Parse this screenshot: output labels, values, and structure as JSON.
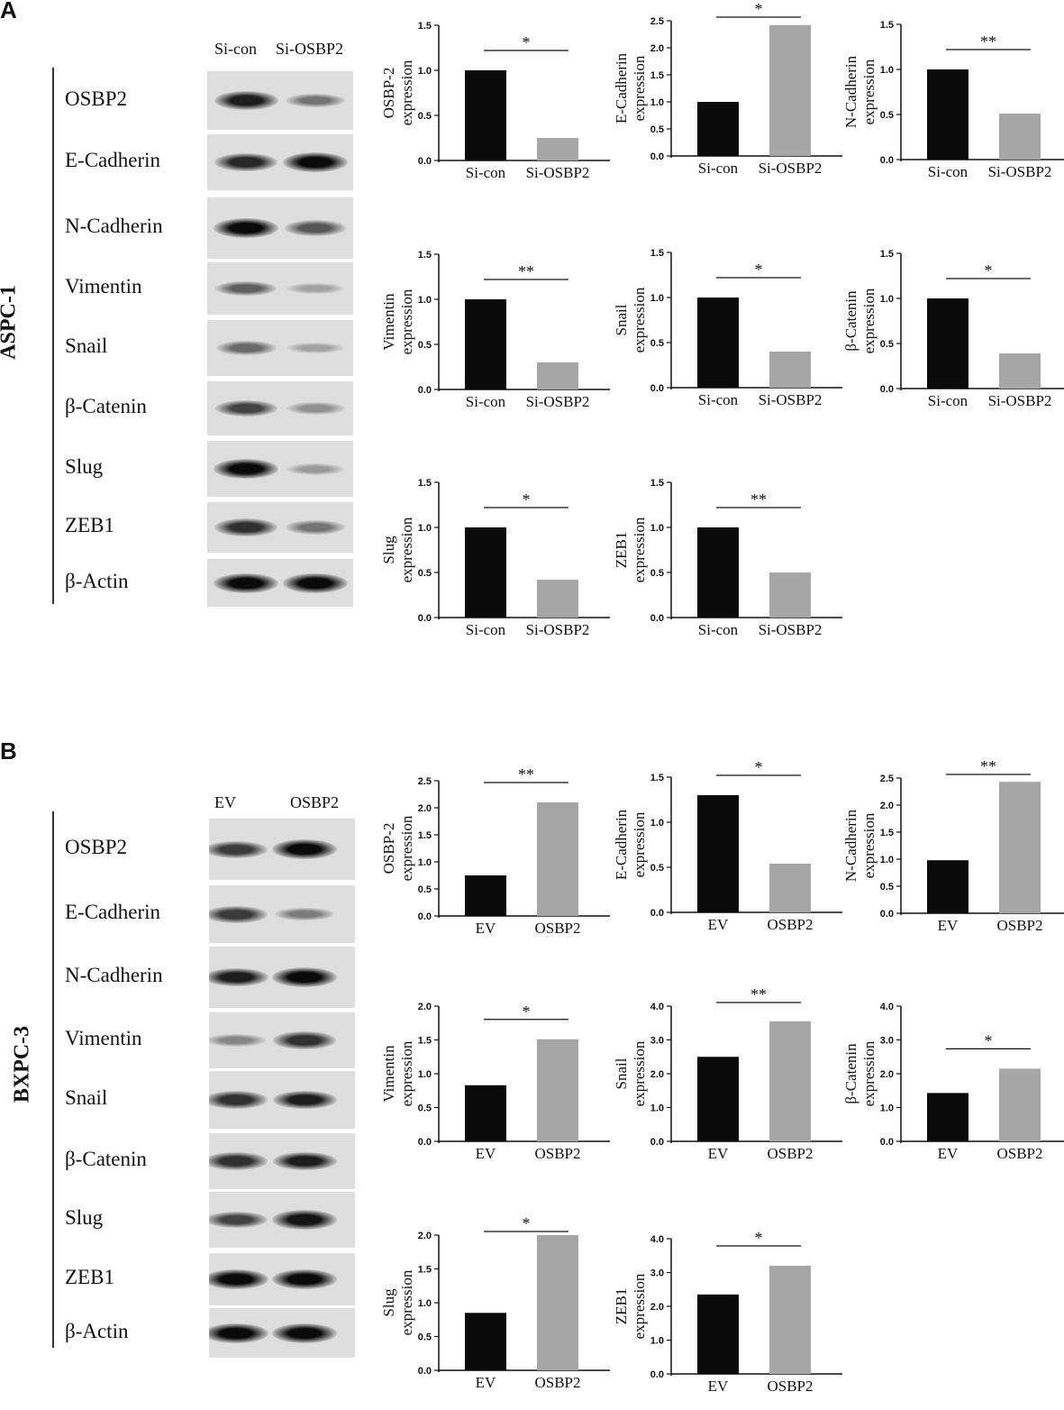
{
  "panels": [
    {
      "label": "A",
      "cell_line": "ASPC-1",
      "blot_columns": [
        "Si-con",
        "Si-OSBP2"
      ],
      "blot_rows": [
        {
          "label": "OSBP2",
          "intensity": [
            0.9,
            0.45
          ]
        },
        {
          "label": "E-Cadherin",
          "intensity": [
            0.85,
            1.0
          ]
        },
        {
          "label": "N-Cadherin",
          "intensity": [
            1.0,
            0.6
          ]
        },
        {
          "label": "Vimentin",
          "intensity": [
            0.55,
            0.2
          ]
        },
        {
          "label": "Snail",
          "intensity": [
            0.5,
            0.2
          ]
        },
        {
          "label": "β-Catenin",
          "intensity": [
            0.7,
            0.3
          ]
        },
        {
          "label": "Slug",
          "intensity": [
            1.0,
            0.25
          ]
        },
        {
          "label": "ZEB1",
          "intensity": [
            0.8,
            0.45
          ]
        },
        {
          "label": "β-Actin",
          "intensity": [
            1.0,
            1.0
          ]
        }
      ]
    },
    {
      "label": "B",
      "cell_line": "BXPC-3",
      "blot_columns": [
        "EV",
        "OSBP2"
      ],
      "blot_rows": [
        {
          "label": "OSBP2",
          "intensity": [
            0.75,
            1.0
          ]
        },
        {
          "label": "E-Cadherin",
          "intensity": [
            0.75,
            0.4
          ]
        },
        {
          "label": "N-Cadherin",
          "intensity": [
            0.9,
            1.0
          ]
        },
        {
          "label": "Vimentin",
          "intensity": [
            0.35,
            0.8
          ]
        },
        {
          "label": "Snail",
          "intensity": [
            0.8,
            0.9
          ]
        },
        {
          "label": "β-Catenin",
          "intensity": [
            0.8,
            0.9
          ]
        },
        {
          "label": "Slug",
          "intensity": [
            0.7,
            0.95
          ]
        },
        {
          "label": "ZEB1",
          "intensity": [
            1.0,
            1.0
          ]
        },
        {
          "label": "β-Actin",
          "intensity": [
            1.0,
            1.0
          ]
        }
      ]
    }
  ],
  "colors": {
    "control_bar": "#0a0a0a",
    "treatment_bar": "#a6a6a6"
  },
  "chart_data": [
    {
      "type": "bar",
      "panel": "A",
      "ylabel": [
        "OSBP-2",
        "expression"
      ],
      "categories": [
        "Si-con",
        "Si-OSBP2"
      ],
      "values": [
        1.0,
        0.25
      ],
      "ylim": [
        0,
        1.5
      ],
      "yticks": [
        "0.0",
        "0.5",
        "1.0",
        "1.5"
      ],
      "significance": "*"
    },
    {
      "type": "bar",
      "panel": "A",
      "ylabel": [
        "E-Cadherin",
        "expression"
      ],
      "categories": [
        "Si-con",
        "Si-OSBP2"
      ],
      "values": [
        1.0,
        2.42
      ],
      "ylim": [
        0,
        2.5
      ],
      "yticks": [
        "0.0",
        "0.5",
        "1.0",
        "1.5",
        "2.0",
        "2.5"
      ],
      "significance": "*"
    },
    {
      "type": "bar",
      "panel": "A",
      "ylabel": [
        "N-Cadherin",
        "expression"
      ],
      "categories": [
        "Si-con",
        "Si-OSBP2"
      ],
      "values": [
        1.0,
        0.51
      ],
      "ylim": [
        0,
        1.5
      ],
      "yticks": [
        "0.0",
        "0.5",
        "1.0",
        "1.5"
      ],
      "significance": "**"
    },
    {
      "type": "bar",
      "panel": "A",
      "ylabel": [
        "Vimentin",
        "expression"
      ],
      "categories": [
        "Si-con",
        "Si-OSBP2"
      ],
      "values": [
        1.0,
        0.3
      ],
      "ylim": [
        0,
        1.5
      ],
      "yticks": [
        "0.0",
        "0.5",
        "1.0",
        "1.5"
      ],
      "significance": "**"
    },
    {
      "type": "bar",
      "panel": "A",
      "ylabel": [
        "Snail",
        "expression"
      ],
      "categories": [
        "Si-con",
        "Si-OSBP2"
      ],
      "values": [
        1.0,
        0.4
      ],
      "ylim": [
        0,
        1.5
      ],
      "yticks": [
        "0.0",
        "0.5",
        "1.0",
        "1.5"
      ],
      "significance": "*"
    },
    {
      "type": "bar",
      "panel": "A",
      "ylabel": [
        "β-Catenin",
        "expression"
      ],
      "categories": [
        "Si-con",
        "Si-OSBP2"
      ],
      "values": [
        1.0,
        0.39
      ],
      "ylim": [
        0,
        1.5
      ],
      "yticks": [
        "0.0",
        "0.5",
        "1.0",
        "1.5"
      ],
      "significance": "*"
    },
    {
      "type": "bar",
      "panel": "A",
      "ylabel": [
        "Slug",
        "expression"
      ],
      "categories": [
        "Si-con",
        "Si-OSBP2"
      ],
      "values": [
        1.0,
        0.42
      ],
      "ylim": [
        0,
        1.5
      ],
      "yticks": [
        "0.0",
        "0.5",
        "1.0",
        "1.5"
      ],
      "significance": "*"
    },
    {
      "type": "bar",
      "panel": "A",
      "ylabel": [
        "ZEB1",
        "expression"
      ],
      "categories": [
        "Si-con",
        "Si-OSBP2"
      ],
      "values": [
        1.0,
        0.5
      ],
      "ylim": [
        0,
        1.5
      ],
      "yticks": [
        "0.0",
        "0.5",
        "1.0",
        "1.5"
      ],
      "significance": "**"
    },
    {
      "type": "bar",
      "panel": "B",
      "ylabel": [
        "OSBP-2",
        "expression"
      ],
      "categories": [
        "EV",
        "OSBP2"
      ],
      "values": [
        0.75,
        2.1
      ],
      "ylim": [
        0,
        2.5
      ],
      "yticks": [
        "0.0",
        "0.5",
        "1.0",
        "1.5",
        "2.0",
        "2.5"
      ],
      "significance": "**"
    },
    {
      "type": "bar",
      "panel": "B",
      "ylabel": [
        "E-Cadherin",
        "expression"
      ],
      "categories": [
        "EV",
        "OSBP2"
      ],
      "values": [
        1.3,
        0.54
      ],
      "ylim": [
        0,
        1.5
      ],
      "yticks": [
        "0.0",
        "0.5",
        "1.0",
        "1.5"
      ],
      "significance": "*"
    },
    {
      "type": "bar",
      "panel": "B",
      "ylabel": [
        "N-Cadherin",
        "expression"
      ],
      "categories": [
        "EV",
        "OSBP2"
      ],
      "values": [
        0.98,
        2.43
      ],
      "ylim": [
        0,
        2.5
      ],
      "yticks": [
        "0.0",
        "0.5",
        "1.0",
        "1.5",
        "2.0",
        "2.5"
      ],
      "significance": "**"
    },
    {
      "type": "bar",
      "panel": "B",
      "ylabel": [
        "Vimentin",
        "expression"
      ],
      "categories": [
        "EV",
        "OSBP2"
      ],
      "values": [
        0.83,
        1.51
      ],
      "ylim": [
        0,
        2.0
      ],
      "yticks": [
        "0.0",
        "0.5",
        "1.0",
        "1.5",
        "2.0"
      ],
      "significance": "*"
    },
    {
      "type": "bar",
      "panel": "B",
      "ylabel": [
        "Snail",
        "expression"
      ],
      "categories": [
        "EV",
        "OSBP2"
      ],
      "values": [
        2.5,
        3.55
      ],
      "ylim": [
        0,
        4.0
      ],
      "yticks": [
        "0.0",
        "1.0",
        "2.0",
        "3.0",
        "4.0"
      ],
      "significance": "**"
    },
    {
      "type": "bar",
      "panel": "B",
      "ylabel": [
        "β-Catenin",
        "expression"
      ],
      "categories": [
        "EV",
        "OSBP2"
      ],
      "values": [
        1.43,
        2.15
      ],
      "ylim": [
        0,
        4.0
      ],
      "yticks": [
        "0.0",
        "1.0",
        "2.0",
        "3.0",
        "4.0"
      ],
      "significance": "*"
    },
    {
      "type": "bar",
      "panel": "B",
      "ylabel": [
        "Slug",
        "expression"
      ],
      "categories": [
        "EV",
        "OSBP2"
      ],
      "values": [
        0.85,
        2.0
      ],
      "ylim": [
        0,
        2.0
      ],
      "yticks": [
        "0.0",
        "0.5",
        "1.0",
        "1.5",
        "2.0"
      ],
      "significance": "*"
    },
    {
      "type": "bar",
      "panel": "B",
      "ylabel": [
        "ZEB1",
        "expression"
      ],
      "categories": [
        "EV",
        "OSBP2"
      ],
      "values": [
        2.35,
        3.2
      ],
      "ylim": [
        0,
        4.0
      ],
      "yticks": [
        "0.0",
        "1.0",
        "2.0",
        "3.0",
        "4.0"
      ],
      "significance": "*"
    }
  ]
}
